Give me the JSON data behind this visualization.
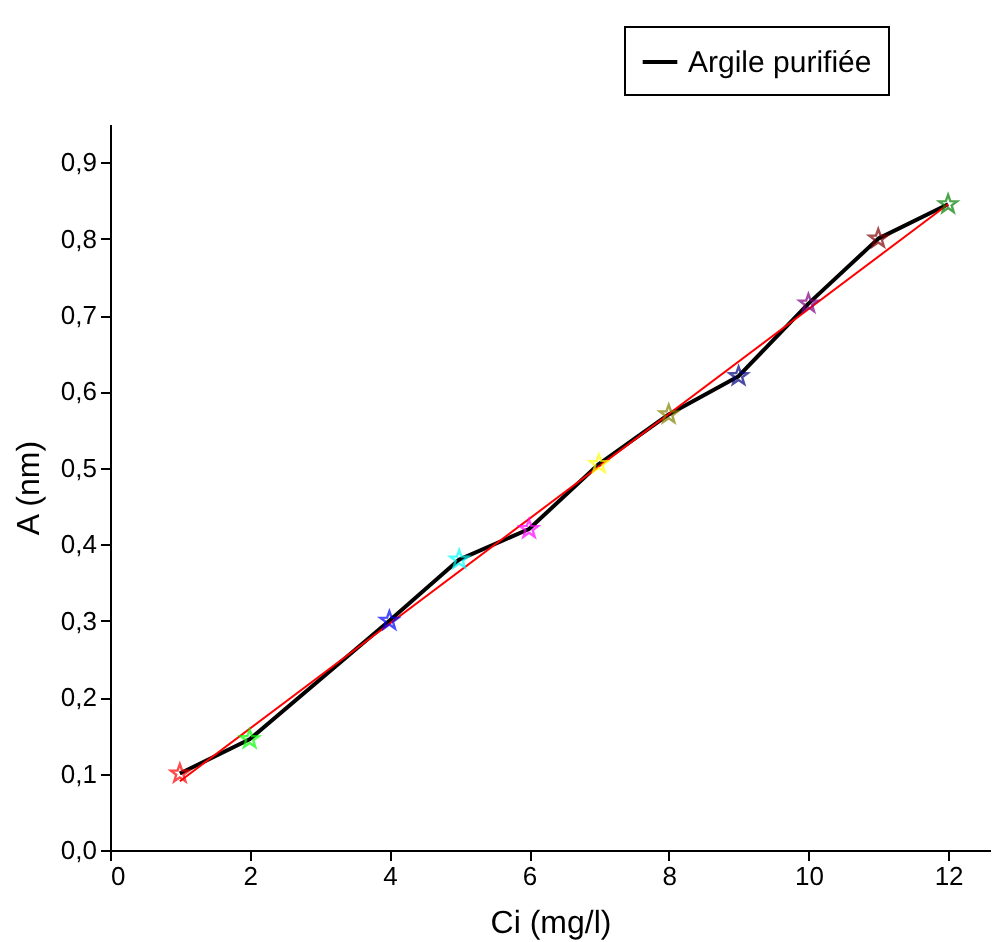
{
  "chart_data": {
    "type": "line",
    "xlabel": "Ci (mg/l)",
    "ylabel": "A (nm)",
    "xlim": [
      0,
      12.6
    ],
    "ylim": [
      0,
      0.95
    ],
    "xticks": [
      0,
      2,
      4,
      6,
      8,
      10,
      12
    ],
    "yticks": [
      {
        "value": 0,
        "label": "0,0"
      },
      {
        "value": 0.1,
        "label": "0,1"
      },
      {
        "value": 0.2,
        "label": "0,2"
      },
      {
        "value": 0.3,
        "label": "0,3"
      },
      {
        "value": 0.4,
        "label": "0,4"
      },
      {
        "value": 0.5,
        "label": "0,5"
      },
      {
        "value": 0.6,
        "label": "0,6"
      },
      {
        "value": 0.7,
        "label": "0,7"
      },
      {
        "value": 0.8,
        "label": "0,8"
      },
      {
        "value": 0.9,
        "label": "0,9"
      }
    ],
    "grid": false,
    "legend": "top right",
    "marker": "star",
    "line_style": "solid",
    "x": [
      1,
      2,
      4,
      5,
      6,
      7,
      8,
      9,
      10,
      11,
      12
    ],
    "series": [
      {
        "name": "Argile purifiée",
        "color": "#000000",
        "values": [
          0.1,
          0.145,
          0.3,
          0.38,
          0.42,
          0.505,
          0.57,
          0.62,
          0.715,
          0.8,
          0.845
        ],
        "colors": [
          "#ff0000",
          "#00ff00",
          "#0000ff",
          "#00ffff",
          "#ff00ff",
          "#ffff00",
          "#808000",
          "#000080",
          "#800080",
          "#800000",
          "#008000"
        ]
      },
      {
        "type": "line",
        "color": "#ff0000",
        "x": [
          1,
          12
        ],
        "values": [
          0.09,
          0.845
        ],
        "marker": "none"
      }
    ]
  }
}
